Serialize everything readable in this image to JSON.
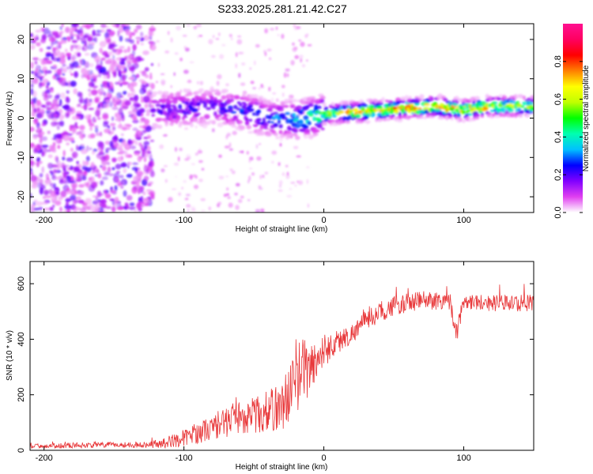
{
  "figure_title": "S233.2025.281.21.42.C27",
  "chart_data": [
    {
      "type": "heatmap",
      "title": "S233.2025.281.21.42.C27",
      "xlabel": "Height of straight line (km)",
      "ylabel": "Frequency (Hz)",
      "xlim": [
        -210,
        150
      ],
      "ylim": [
        -24,
        24
      ],
      "xticks": [
        -200,
        -100,
        0,
        100
      ],
      "yticks": [
        -20,
        -10,
        0,
        10,
        20
      ],
      "colorbar": {
        "label": "Normalized spectral amplitude",
        "range": [
          0,
          1
        ],
        "ticks": [
          0.0,
          0.2,
          0.4,
          0.6,
          0.8
        ],
        "tick_labels": [
          "0.0",
          "0.2",
          "0.4",
          "0.6",
          "0.8"
        ],
        "colors": [
          "#ffffff",
          "#e040f0",
          "#8000ff",
          "#0000ff",
          "#00c0ff",
          "#00ffb0",
          "#00ff00",
          "#c0ff00",
          "#ffff00",
          "#ff8000",
          "#ff0000",
          "#ff0060",
          "#ff1090"
        ]
      },
      "ridge": {
        "x": [
          -120,
          -100,
          -80,
          -60,
          -40,
          -20,
          0,
          20,
          40,
          60,
          80,
          100,
          120,
          150
        ],
        "y": [
          2,
          2.5,
          3,
          2,
          0,
          -0.5,
          1,
          1.5,
          2,
          2.5,
          3,
          2,
          3,
          3
        ],
        "amplitude": [
          0.2,
          0.25,
          0.2,
          0.3,
          0.3,
          0.4,
          0.55,
          0.8,
          0.75,
          0.8,
          0.9,
          0.8,
          0.7,
          0.6
        ]
      }
    },
    {
      "type": "line",
      "xlabel": "Height of straight line (km)",
      "ylabel": "SNR (10 * v/v)",
      "xlim": [
        -210,
        150
      ],
      "ylim": [
        0,
        680
      ],
      "xticks": [
        -200,
        -100,
        0,
        100
      ],
      "yticks": [
        0,
        200,
        400,
        600
      ],
      "line_color": "#e8383a",
      "series": [
        {
          "name": "SNR",
          "x": [
            -210,
            -180,
            -150,
            -130,
            -115,
            -100,
            -80,
            -60,
            -45,
            -30,
            -20,
            -15,
            -10,
            0,
            10,
            20,
            30,
            50,
            70,
            90,
            95,
            100,
            120,
            150
          ],
          "y": [
            15,
            18,
            20,
            20,
            25,
            45,
            80,
            120,
            130,
            160,
            250,
            300,
            290,
            360,
            390,
            420,
            470,
            520,
            540,
            540,
            420,
            540,
            530,
            530
          ],
          "noise": [
            8,
            10,
            10,
            10,
            18,
            30,
            45,
            60,
            70,
            90,
            120,
            120,
            100,
            60,
            45,
            35,
            35,
            35,
            35,
            35,
            35,
            30,
            30,
            30
          ]
        }
      ]
    }
  ]
}
